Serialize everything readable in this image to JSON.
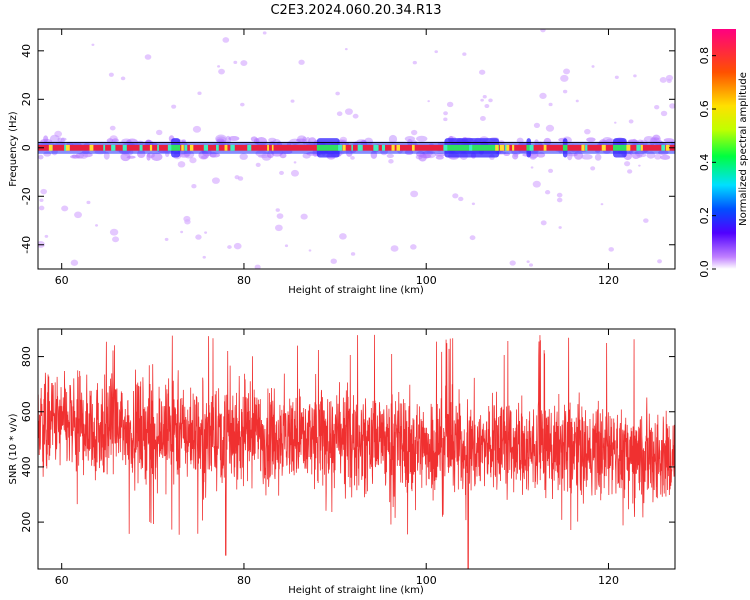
{
  "page_title": "C2E3.2024.060.20.34.R13",
  "chart_data": [
    {
      "type": "heatmap",
      "name": "spectrogram",
      "xlabel": "Height of straight line (km)",
      "ylabel": "Frequency (Hz)",
      "xlim": [
        57.4,
        127.3
      ],
      "ylim": [
        -50,
        49
      ],
      "xticks": [
        60,
        80,
        100,
        120
      ],
      "yticks": [
        -40,
        -20,
        0,
        20,
        40
      ],
      "colorbar": {
        "label": "Normalized spectral amplitude",
        "range": [
          0.0,
          0.9
        ],
        "ticks": [
          0.0,
          0.2,
          0.4,
          0.6,
          0.8
        ],
        "colormap": [
          "#ffffff",
          "#c080ff",
          "#5000ff",
          "#0050ff",
          "#00e0ff",
          "#00ff40",
          "#c0ff00",
          "#ffe000",
          "#ff5000",
          "#ff0080"
        ]
      },
      "dominant_band": {
        "frequency_hz": 0,
        "amplitude": 0.9
      },
      "weaker_segments_km": [
        [
          72,
          73
        ],
        [
          88,
          90.5
        ],
        [
          102,
          108
        ],
        [
          111,
          111.5
        ],
        [
          115,
          115.5
        ],
        [
          120.5,
          122
        ]
      ]
    },
    {
      "type": "line",
      "name": "snr",
      "xlabel": "Height of straight line (km)",
      "ylabel": "SNR (10 * v/v)",
      "xlim": [
        57.4,
        127.3
      ],
      "ylim": [
        30,
        900
      ],
      "xticks": [
        60,
        80,
        100,
        120
      ],
      "yticks": [
        200,
        400,
        600,
        800
      ],
      "series": [
        {
          "color": "#f03030",
          "x_range": [
            57.4,
            127.3
          ],
          "baseline": [
            [
              57.4,
              560
            ],
            [
              70,
              530
            ],
            [
              85,
              510
            ],
            [
              100,
              480
            ],
            [
              110,
              470
            ],
            [
              127.3,
              440
            ]
          ],
          "typical_min": 300,
          "typical_max": 800,
          "extreme_min": 30,
          "extreme_max": 880
        }
      ]
    }
  ]
}
